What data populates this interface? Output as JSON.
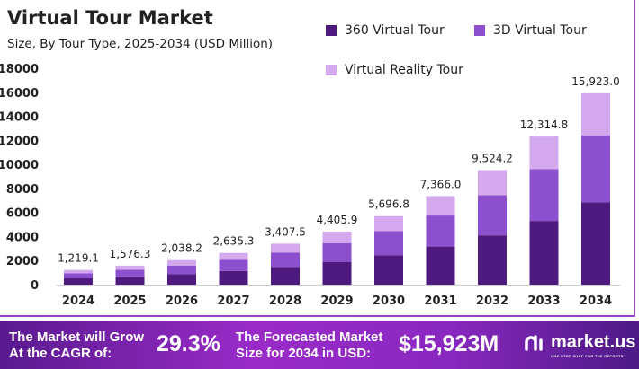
{
  "chart_data": {
    "type": "bar",
    "stacked": true,
    "title": "Virtual Tour Market",
    "subtitle": "Size, By Tour Type, 2025-2034 (USD Million)",
    "categories": [
      "2024",
      "2025",
      "2026",
      "2027",
      "2028",
      "2029",
      "2030",
      "2031",
      "2032",
      "2033",
      "2034"
    ],
    "series": [
      {
        "name": "360 Virtual Tour",
        "color": "#4e1a80",
        "values": [
          524.2,
          677.8,
          876.4,
          1133.2,
          1465.2,
          1894.5,
          2449.6,
          3167.4,
          4095.4,
          5295.4,
          6846.9
        ]
      },
      {
        "name": "3D Virtual Tour",
        "color": "#8c4fcd",
        "values": [
          426.7,
          551.7,
          713.4,
          922.4,
          1192.6,
          1542.1,
          1993.9,
          2578.1,
          3333.5,
          4310.2,
          5573.1
        ]
      },
      {
        "name": "Virtual Reality Tour",
        "color": "#d3a8ec",
        "values": [
          268.2,
          346.8,
          448.4,
          579.7,
          749.7,
          969.3,
          1253.3,
          1620.5,
          2095.3,
          2709.2,
          3503.0
        ]
      }
    ],
    "totals": [
      "1,219.1",
      "1,576.3",
      "2,038.2",
      "2,635.3",
      "3,407.5",
      "4,405.9",
      "5,696.8",
      "7,366.0",
      "9,524.2",
      "12,314.8",
      "15,923.0"
    ],
    "yticks": [
      "0",
      "2000",
      "4000",
      "6000",
      "8000",
      "10000",
      "12000",
      "14000",
      "16000",
      "18000"
    ],
    "ylim": [
      0,
      18000
    ],
    "grid": false,
    "legend": "top-right"
  },
  "banner": {
    "cagr_label_1": "The Market will Grow",
    "cagr_label_2": "At the CAGR of:",
    "cagr_value": "29.3%",
    "forecast_label_1": "The Forecasted Market",
    "forecast_label_2": "Size for 2034 in USD:",
    "forecast_value": "$15,923M",
    "logo_text": "market.us",
    "logo_tagline": "ONE STOP SHOP FOR THE REPORTS"
  }
}
